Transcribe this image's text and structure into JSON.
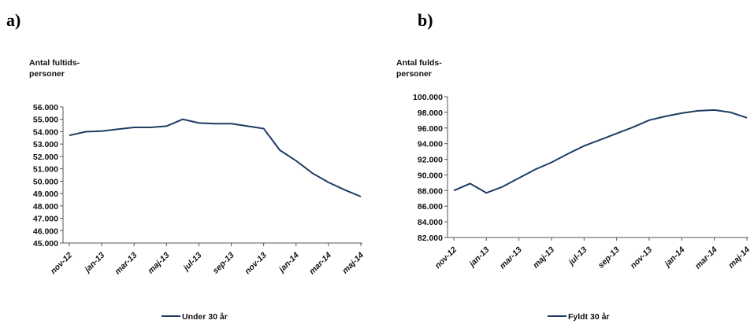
{
  "panels": [
    {
      "label": "a)"
    },
    {
      "label": "b)"
    }
  ],
  "chart_data": [
    {
      "type": "line",
      "ylabel_lines": [
        "Antal fultids-",
        "personer"
      ],
      "xlabel": "",
      "ylim": [
        45000,
        56000
      ],
      "y_ticks": [
        "45.000",
        "46.000",
        "47.000",
        "48.000",
        "49.000",
        "50.000",
        "51.000",
        "52.000",
        "53.000",
        "54.000",
        "55.000",
        "56.000"
      ],
      "x_tick_labels": [
        "nov-12",
        "jan-13",
        "mar-13",
        "maj-13",
        "jul-13",
        "sep-13",
        "nov-13",
        "jan-14",
        "mar-14",
        "maj-14"
      ],
      "grid": false,
      "legend_position": "bottom-center",
      "series": [
        {
          "name": "Under 30 år",
          "color": "#1f3b63",
          "x": [
            "nov-12",
            "dec-12",
            "jan-13",
            "feb-13",
            "mar-13",
            "apr-13",
            "maj-13",
            "jun-13",
            "jul-13",
            "aug-13",
            "sep-13",
            "okt-13",
            "nov-13",
            "dec-13",
            "jan-14",
            "feb-14",
            "mar-14",
            "apr-14",
            "maj-14"
          ],
          "values": [
            53700,
            54000,
            54050,
            54200,
            54350,
            54350,
            54450,
            55000,
            54700,
            54650,
            54650,
            54450,
            54250,
            52500,
            51650,
            50650,
            49900,
            49300,
            48750
          ]
        }
      ]
    },
    {
      "type": "line",
      "ylabel_lines": [
        "Antal fulds-",
        "personer"
      ],
      "xlabel": "",
      "ylim": [
        82000,
        100000
      ],
      "y_ticks": [
        "82.000",
        "84.000",
        "86.000",
        "88.000",
        "90.000",
        "92.000",
        "94.000",
        "96.000",
        "98.000",
        "100.000"
      ],
      "x_tick_labels": [
        "nov-12",
        "jan-13",
        "mar-13",
        "maj-13",
        "jul-13",
        "sep-13",
        "nov-13",
        "jan-14",
        "mar-14",
        "maj-14"
      ],
      "grid": false,
      "legend_position": "bottom-center",
      "series": [
        {
          "name": "Fyldt 30 år",
          "color": "#1f3b63",
          "x": [
            "nov-12",
            "dec-12",
            "jan-13",
            "feb-13",
            "mar-13",
            "apr-13",
            "maj-13",
            "jun-13",
            "jul-13",
            "aug-13",
            "sep-13",
            "okt-13",
            "nov-13",
            "dec-13",
            "jan-14",
            "feb-14",
            "mar-14",
            "apr-14",
            "maj-14"
          ],
          "values": [
            88000,
            88900,
            87700,
            88500,
            89600,
            90700,
            91600,
            92700,
            93700,
            94500,
            95300,
            96100,
            97000,
            97500,
            97900,
            98200,
            98300,
            98000,
            97300
          ]
        }
      ]
    }
  ]
}
